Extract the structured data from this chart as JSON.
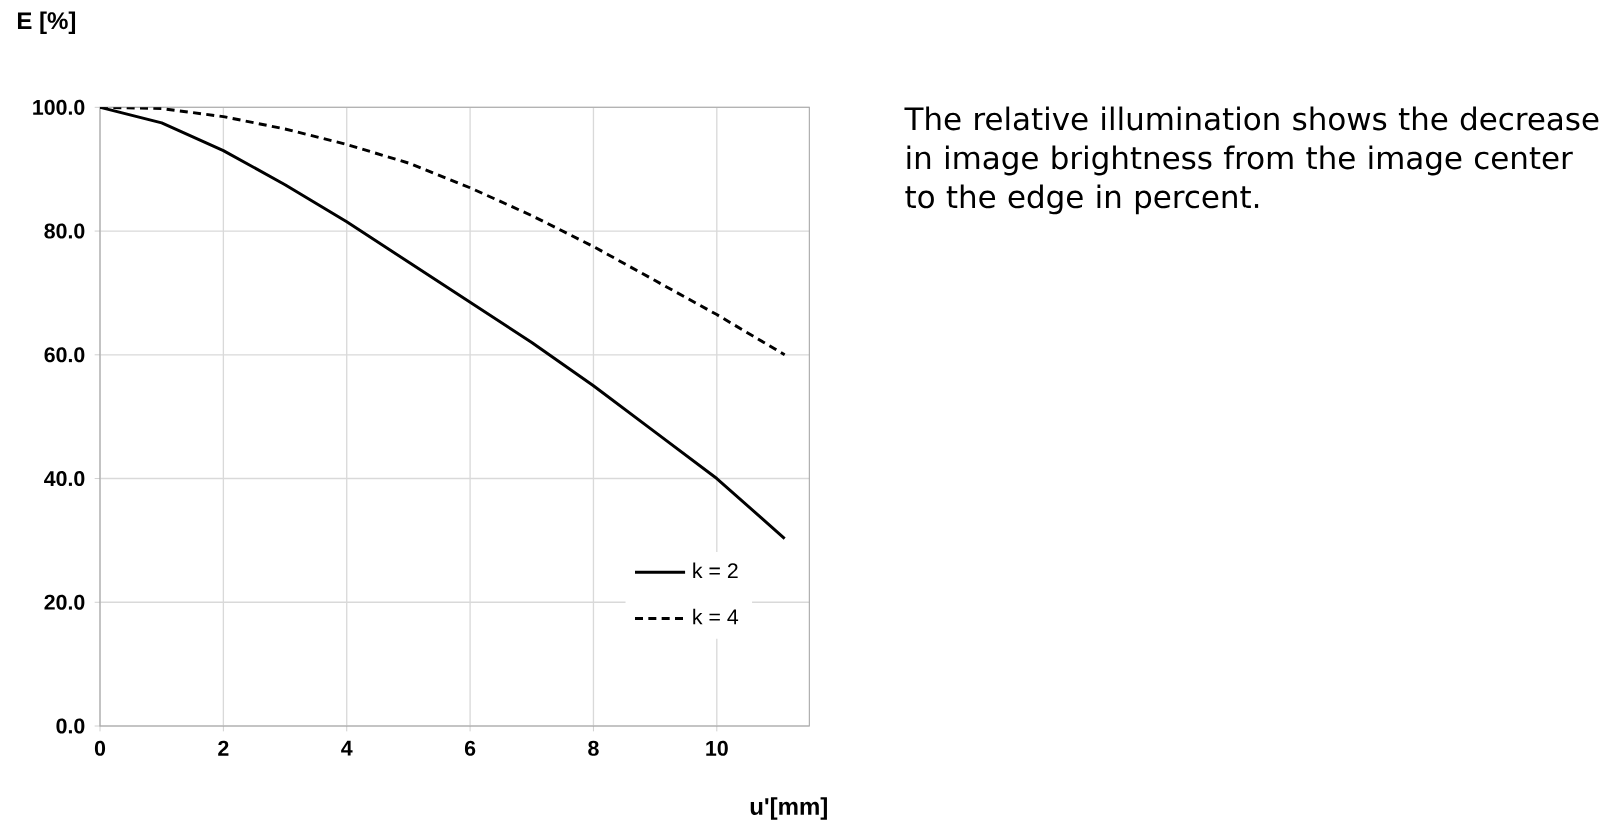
{
  "chart_data": {
    "type": "line",
    "xlabel": "u'[mm]",
    "ylabel": "E [%]",
    "annotations": [
      "The relative illumination shows the decrease in image brightness from the image center to the edge in percent."
    ],
    "x": [
      0,
      1,
      2,
      3,
      4,
      5,
      6,
      7,
      8,
      9,
      10,
      11.1
    ],
    "series": [
      {
        "name": "k = 2",
        "color": "#000000",
        "line_style": "solid",
        "values": [
          100,
          97.5,
          93,
          87.5,
          81.5,
          75,
          68.5,
          62,
          55,
          47.5,
          40,
          30.3
        ]
      },
      {
        "name": "k = 4",
        "color": "#000000",
        "line_style": "dashed",
        "values": [
          100,
          99.8,
          98.5,
          96.5,
          94,
          91,
          87,
          82.5,
          77.5,
          72,
          66.5,
          60
        ]
      }
    ],
    "xlim": [
      0,
      11.5
    ],
    "ylim": [
      0,
      100
    ],
    "xticks": [
      0,
      2,
      4,
      6,
      8,
      10
    ],
    "yticks": [
      {
        "value": 0,
        "label": "0.0"
      },
      {
        "value": 20,
        "label": "20.0"
      },
      {
        "value": 40,
        "label": "40.0"
      },
      {
        "value": 60,
        "label": "60.0"
      },
      {
        "value": 80,
        "label": "80.0"
      },
      {
        "value": 100,
        "label": "100.0"
      }
    ],
    "grid": true,
    "legend": "bottom right",
    "marker": "none"
  }
}
